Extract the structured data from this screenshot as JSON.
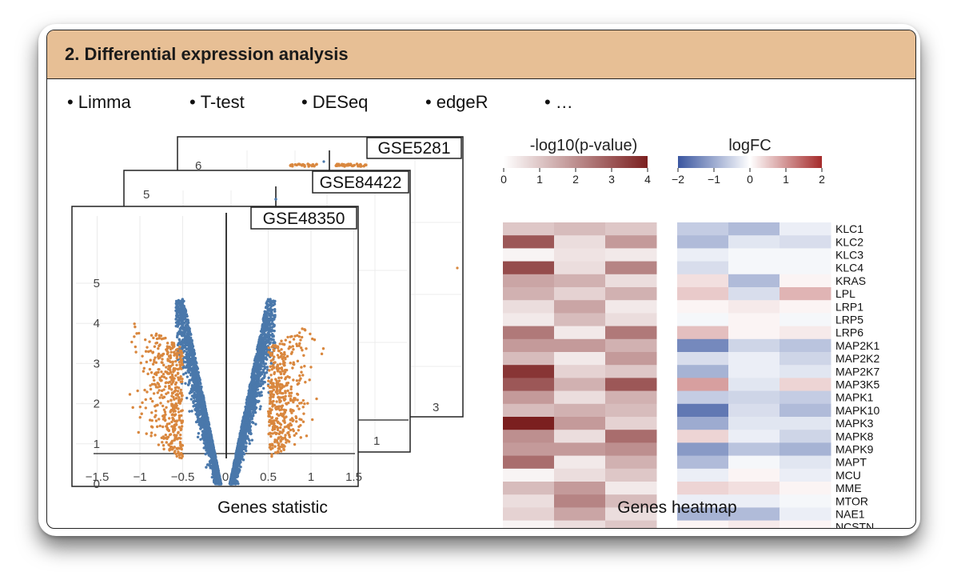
{
  "header": {
    "title": "2. Differential expression analysis"
  },
  "methods": [
    "Limma",
    "T-test",
    "DESeq",
    "edgeR",
    "…"
  ],
  "colors": {
    "header_bg": "#e7bf95",
    "volcano_sig": "#d9873e",
    "volcano_nonsig": "#4a78ab",
    "pvalue_high": "#7b1f1f",
    "logfc_neg": "#3a56a0",
    "logfc_pos": "#a52a2a"
  },
  "volcano": {
    "panels": [
      {
        "label": "GSE5281",
        "tick": "6",
        "corner": "3"
      },
      {
        "label": "GSE84422",
        "tick": "5",
        "corner": "1"
      },
      {
        "label": "GSE48350"
      }
    ],
    "x_ticks": [
      "−1.5",
      "−1",
      "−0.5",
      "0",
      "0.5",
      "1",
      "1.5"
    ],
    "y_ticks": [
      "0",
      "1",
      "2",
      "3",
      "4",
      "5"
    ],
    "caption": "Genes statistic"
  },
  "heatmaps": {
    "pvalue": {
      "legend_title": "-log10(p-value)",
      "legend_ticks": [
        "0",
        "1",
        "2",
        "3",
        "4"
      ]
    },
    "logfc": {
      "legend_title": "logFC",
      "legend_ticks": [
        "−2",
        "−1",
        "0",
        "1",
        "2"
      ]
    },
    "columns": [
      "GSE5281",
      "GSE84422",
      "GSE48350"
    ],
    "caption": "Genes heatmap"
  },
  "chart_data": {
    "type": "heatmap",
    "genes": [
      "KLC1",
      "KLC2",
      "KLC3",
      "KLC4",
      "KRAS",
      "LPL",
      "LRP1",
      "LRP5",
      "LRP6",
      "MAP2K1",
      "MAP2K2",
      "MAP2K7",
      "MAP3K5",
      "MAPK1",
      "MAPK10",
      "MAPK3",
      "MAPK8",
      "MAPK9",
      "MAPT",
      "MCU",
      "MME",
      "MTOR",
      "NAE1",
      "NCSTN"
    ],
    "datasets": [
      "GSE5281",
      "GSE84422",
      "GSE48350"
    ],
    "neg_log10_pvalue": [
      [
        1.0,
        1.2,
        1.0
      ],
      [
        3.0,
        0.6,
        1.8
      ],
      [
        0.2,
        0.5,
        0.4
      ],
      [
        3.2,
        0.6,
        2.2
      ],
      [
        1.6,
        1.4,
        0.6
      ],
      [
        1.4,
        0.8,
        1.4
      ],
      [
        0.6,
        1.6,
        0.4
      ],
      [
        0.4,
        1.2,
        0.6
      ],
      [
        2.4,
        0.4,
        2.4
      ],
      [
        1.8,
        1.8,
        1.4
      ],
      [
        1.2,
        0.4,
        1.8
      ],
      [
        3.6,
        0.8,
        1.0
      ],
      [
        3.0,
        1.4,
        3.0
      ],
      [
        1.8,
        0.6,
        1.4
      ],
      [
        1.2,
        1.4,
        1.2
      ],
      [
        4.0,
        1.8,
        0.8
      ],
      [
        2.0,
        0.6,
        2.6
      ],
      [
        1.8,
        1.8,
        2.0
      ],
      [
        2.6,
        0.4,
        1.4
      ],
      [
        0.2,
        0.6,
        1.0
      ],
      [
        1.2,
        1.8,
        0.4
      ],
      [
        0.6,
        2.2,
        1.2
      ],
      [
        0.8,
        1.6,
        0.6
      ],
      [
        0.2,
        0.6,
        1.0
      ]
    ],
    "logfc": [
      [
        -0.6,
        -0.8,
        -0.2
      ],
      [
        -0.8,
        -0.3,
        -0.4
      ],
      [
        -0.2,
        -0.1,
        -0.1
      ],
      [
        -0.4,
        -0.1,
        -0.1
      ],
      [
        0.3,
        -0.8,
        0.1
      ],
      [
        0.5,
        -0.4,
        0.7
      ],
      [
        0.1,
        0.2,
        0.1
      ],
      [
        -0.1,
        0.1,
        -0.1
      ],
      [
        0.6,
        0.1,
        0.2
      ],
      [
        -1.4,
        -0.5,
        -0.7
      ],
      [
        -0.4,
        -0.2,
        -0.5
      ],
      [
        -0.9,
        -0.2,
        -0.3
      ],
      [
        0.9,
        -0.3,
        0.4
      ],
      [
        -0.6,
        -0.5,
        -0.6
      ],
      [
        -1.6,
        -0.4,
        -0.8
      ],
      [
        -1.0,
        -0.3,
        -0.3
      ],
      [
        0.4,
        -0.2,
        -0.5
      ],
      [
        -1.2,
        -0.7,
        -0.9
      ],
      [
        -0.8,
        -0.1,
        -0.3
      ],
      [
        -0.2,
        0.1,
        -0.2
      ],
      [
        0.4,
        0.3,
        0.1
      ],
      [
        -0.2,
        -0.2,
        -0.1
      ],
      [
        -0.9,
        -0.8,
        -0.2
      ],
      [
        0.1,
        0.2,
        0.1
      ]
    ],
    "pvalue_range": [
      0,
      4
    ],
    "logfc_range": [
      -2,
      2
    ]
  }
}
